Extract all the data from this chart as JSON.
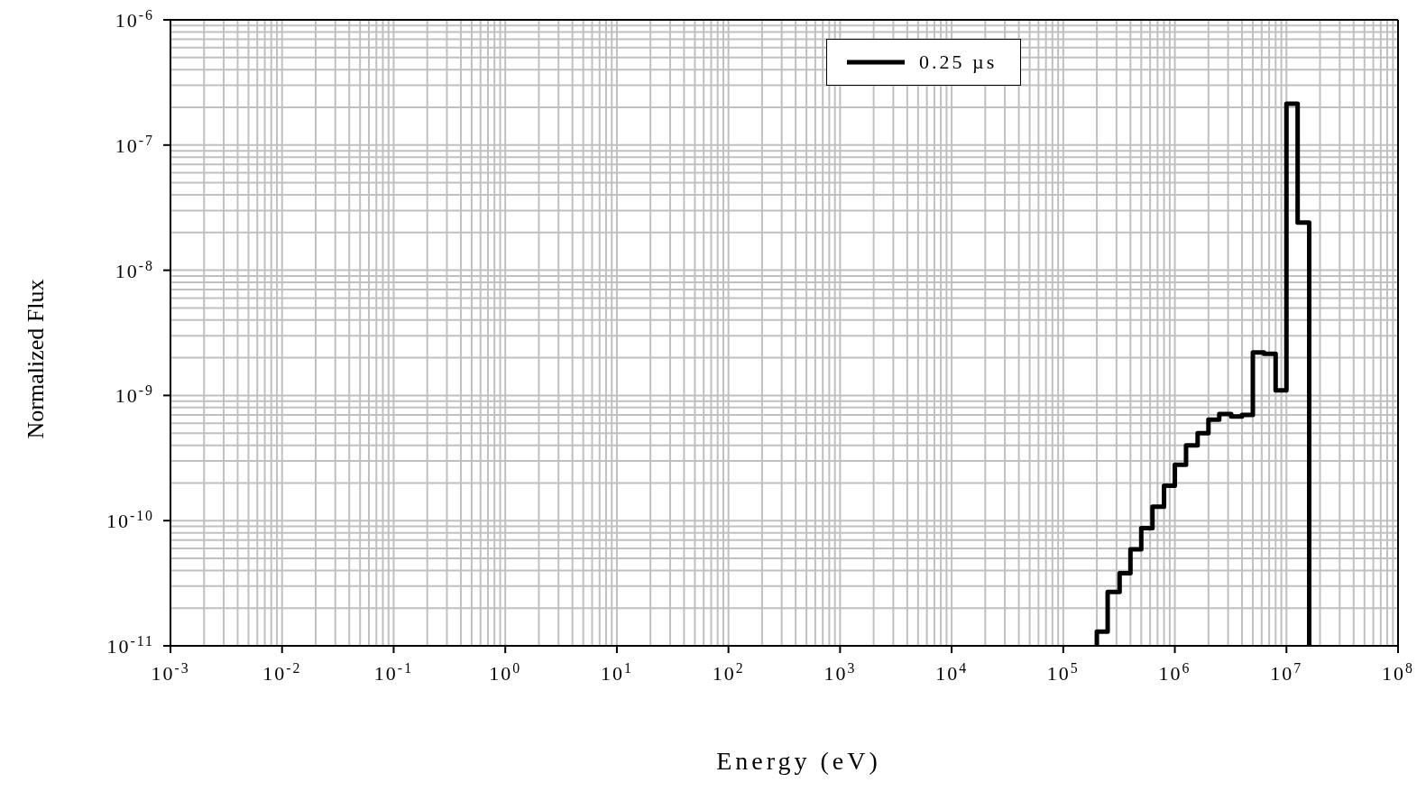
{
  "chart_data": {
    "type": "histogram",
    "xlabel": "Energy (eV)",
    "ylabel": "Normalized Flux",
    "bins": [
      200000,
      250000,
      320000,
      400000,
      500000,
      630000,
      800000,
      1000000,
      1260000,
      1600000,
      2000000,
      2500000,
      3200000,
      4000000,
      5000000,
      6300000,
      8000000,
      10000000,
      12600000,
      16000000
    ],
    "series": [
      {
        "name": "0.25 µs",
        "color": "#000000",
        "values": [
          1.3e-11,
          2.7e-11,
          3.8e-11,
          5.9e-11,
          8.7e-11,
          1.29e-10,
          1.9e-10,
          2.8e-10,
          4e-10,
          5e-10,
          6.4e-10,
          7.1e-10,
          6.8e-10,
          7e-10,
          2.2e-09,
          2.15e-09,
          1.1e-09,
          2.14e-07,
          2.4e-08
        ]
      }
    ],
    "log": "xy",
    "grid": true,
    "legend": "top",
    "xlim": [
      0.001,
      100000000
    ],
    "xticks": [
      {
        "value": 0.001,
        "label": "10$^{-3}$"
      },
      {
        "value": 0.01,
        "label": "10$^{-2}$"
      },
      {
        "value": 0.1,
        "label": "10$^{-1}$"
      },
      {
        "value": 1,
        "label": "10$^{0}$"
      },
      {
        "value": 10,
        "label": "10$^{1}$"
      },
      {
        "value": 100,
        "label": "10$^{2}$"
      },
      {
        "value": 1000,
        "label": "10$^{3}$"
      },
      {
        "value": 10000,
        "label": "10$^{4}$"
      },
      {
        "value": 100000,
        "label": "10$^{5}$"
      },
      {
        "value": 1000000,
        "label": "10$^{6}$"
      },
      {
        "value": 10000000,
        "label": "10$^{7}$"
      },
      {
        "value": 100000000,
        "label": "10$^{8}$"
      }
    ],
    "ylim": [
      1e-11,
      1e-06
    ],
    "yticks": [
      {
        "value": 1e-11,
        "label": "10$^{-11}$"
      },
      {
        "value": 1e-10,
        "label": "10$^{-10}$"
      },
      {
        "value": 1e-09,
        "label": "10$^{-9}$"
      },
      {
        "value": 1e-08,
        "label": "10$^{-8}$"
      },
      {
        "value": 1e-07,
        "label": "10$^{-7}$"
      },
      {
        "value": 1e-06,
        "label": "10$^{-6}$"
      }
    ]
  }
}
